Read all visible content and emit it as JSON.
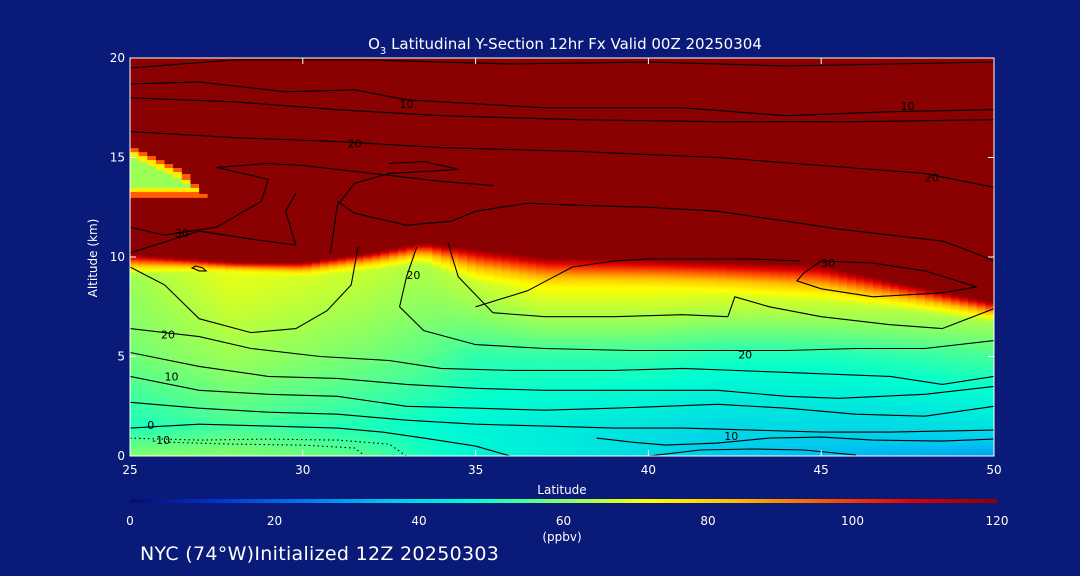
{
  "chart_data": {
    "type": "heatmap",
    "title_prefix": "O",
    "title_sub": "3",
    "title_rest": " Latitudinal Y-Section 12hr  Fx Valid 00Z 20250304",
    "xlabel": "Latitude",
    "ylabel": "Altitude (km)",
    "xlim": [
      25,
      50
    ],
    "ylim": [
      0,
      20
    ],
    "xticks": [
      "25",
      "30",
      "35",
      "40",
      "45",
      "50"
    ],
    "yticks": [
      "0",
      "5",
      "10",
      "15",
      "20"
    ],
    "colorbar": {
      "min": 0,
      "max": 120,
      "ticks": [
        "0",
        "20",
        "40",
        "60",
        "80",
        "100",
        "120"
      ],
      "unit": "(ppbv)",
      "colors": [
        "#0a0a70",
        "#0033cc",
        "#0077ee",
        "#00c8f0",
        "#00ffd0",
        "#88ff66",
        "#ffff00",
        "#ffbb00",
        "#ff5500",
        "#e00000",
        "#8b0000"
      ]
    },
    "field": [
      {
        "lat": 25,
        "bottom": 0,
        "v02": 60,
        "v1": 50,
        "mid": 58,
        "top": 62,
        "blend_lo": 9.0,
        "sat": 10.2,
        "strat_lo": 13.0,
        "strat_hi": 15.6
      },
      {
        "lat": 26.5,
        "bottom": 0,
        "v02": 60,
        "v1": 52,
        "mid": 60,
        "top": 66,
        "blend_lo": 9.2,
        "sat": 10.0,
        "strat_lo": 13.0,
        "strat_hi": 14.4
      },
      {
        "lat": 28,
        "bottom": 0,
        "v02": 60,
        "v1": 54,
        "mid": 62,
        "top": 70,
        "blend_lo": 9.2,
        "sat": 9.8
      },
      {
        "lat": 30,
        "bottom": 0,
        "v02": 58,
        "v1": 52,
        "mid": 60,
        "top": 68,
        "blend_lo": 9.0,
        "sat": 9.8
      },
      {
        "lat": 32,
        "bottom": 0,
        "v02": 55,
        "v1": 50,
        "mid": 58,
        "top": 66,
        "blend_lo": 9.3,
        "sat": 10.3
      },
      {
        "lat": 33.5,
        "bottom": 0,
        "v02": 50,
        "v1": 48,
        "mid": 56,
        "top": 64,
        "blend_lo": 9.6,
        "sat": 10.8
      },
      {
        "lat": 35,
        "bottom": 0,
        "v02": 46,
        "v1": 46,
        "mid": 52,
        "top": 66,
        "blend_lo": 8.6,
        "sat": 10.5
      },
      {
        "lat": 37,
        "bottom": 0,
        "v02": 44,
        "v1": 44,
        "mid": 52,
        "top": 70,
        "blend_lo": 8.2,
        "sat": 10.1
      },
      {
        "lat": 40,
        "bottom": 0,
        "v02": 40,
        "v1": 42,
        "mid": 52,
        "top": 70,
        "blend_lo": 8.2,
        "sat": 10.0
      },
      {
        "lat": 42,
        "bottom": 0,
        "v02": 36,
        "v1": 40,
        "mid": 50,
        "top": 68,
        "blend_lo": 8.0,
        "sat": 9.9
      },
      {
        "lat": 45,
        "bottom": 0,
        "v02": 34,
        "v1": 40,
        "mid": 50,
        "top": 66,
        "blend_lo": 7.6,
        "sat": 9.7
      },
      {
        "lat": 47.5,
        "bottom": 0,
        "v02": 32,
        "v1": 40,
        "mid": 52,
        "top": 64,
        "blend_lo": 7.2,
        "sat": 8.7
      },
      {
        "lat": 50,
        "bottom": 0,
        "v02": 30,
        "v1": 42,
        "mid": 54,
        "top": 62,
        "blend_lo": 6.6,
        "sat": 7.8
      }
    ],
    "contours": [
      {
        "label": "10",
        "level": 10,
        "dashed": false,
        "points": [
          [
            25,
            19.5
          ],
          [
            28,
            19.9
          ],
          [
            32,
            19.9
          ],
          [
            36,
            19.7
          ],
          [
            40,
            19.8
          ],
          [
            44,
            19.6
          ],
          [
            47,
            19.7
          ],
          [
            50,
            19.8
          ]
        ]
      },
      {
        "label": "10",
        "level": 10,
        "dashed": false,
        "points": [
          [
            25,
            18.7
          ],
          [
            27,
            18.8
          ],
          [
            29.5,
            18.3
          ],
          [
            31.5,
            18.4
          ],
          [
            33,
            17.9
          ],
          [
            37,
            17.5
          ],
          [
            41,
            17.5
          ],
          [
            44,
            17.1
          ],
          [
            47,
            17.3
          ],
          [
            50,
            17.4
          ]
        ],
        "label_at": [
          [
            33,
            17.7
          ],
          [
            47.5,
            17.6
          ]
        ]
      },
      {
        "label": "20",
        "level": 20,
        "dashed": false,
        "points": [
          [
            25,
            18.0
          ],
          [
            28,
            17.8
          ],
          [
            31,
            17.4
          ],
          [
            34,
            17.1
          ],
          [
            38,
            16.9
          ],
          [
            42,
            16.8
          ],
          [
            46,
            16.8
          ],
          [
            50,
            16.9
          ]
        ]
      },
      {
        "label": "20",
        "level": 20,
        "dashed": false,
        "points": [
          [
            25,
            16.3
          ],
          [
            28,
            16.0
          ],
          [
            31,
            15.8
          ],
          [
            34,
            15.5
          ],
          [
            38,
            15.3
          ],
          [
            42,
            15.0
          ],
          [
            45,
            14.6
          ],
          [
            48,
            14.2
          ],
          [
            50,
            13.5
          ]
        ],
        "label_at": [
          [
            31.5,
            15.7
          ],
          [
            48.2,
            14.0
          ]
        ]
      },
      {
        "label": "30",
        "level": 30,
        "dashed": false,
        "points": [
          [
            25,
            11.5
          ],
          [
            26,
            11.1
          ],
          [
            27.5,
            11.5
          ],
          [
            28.8,
            12.8
          ],
          [
            29,
            13.9
          ],
          [
            27.5,
            14.5
          ],
          [
            29,
            14.7
          ],
          [
            30,
            14.6
          ],
          [
            32,
            14.2
          ],
          [
            34,
            13.8
          ],
          [
            35.5,
            13.6
          ]
        ]
      },
      {
        "label": "30",
        "level": 30,
        "dashed": false,
        "points": [
          [
            25,
            10.2
          ],
          [
            27,
            11.3
          ],
          [
            28.5,
            10.9
          ],
          [
            29.8,
            10.6
          ],
          [
            29.5,
            12.3
          ],
          [
            29.8,
            13.2
          ]
        ],
        "label_at": [
          [
            26.5,
            11.2
          ]
        ]
      },
      {
        "label": "30",
        "level": 30,
        "dashed": false,
        "points": [
          [
            30.8,
            10.2
          ],
          [
            31,
            12.6
          ],
          [
            31.5,
            13.7
          ],
          [
            32.5,
            14.2
          ],
          [
            34.5,
            14.4
          ],
          [
            33.5,
            14.8
          ],
          [
            32.5,
            14.7
          ]
        ]
      },
      {
        "label": "30",
        "level": 30,
        "dashed": false,
        "points": [
          [
            31,
            12.8
          ],
          [
            31.5,
            12.2
          ],
          [
            33,
            11.6
          ],
          [
            34.3,
            11.8
          ],
          [
            35,
            12.3
          ],
          [
            36.5,
            12.7
          ],
          [
            38,
            12.6
          ],
          [
            40,
            12.5
          ],
          [
            42,
            12.3
          ],
          [
            44,
            11.8
          ],
          [
            45.5,
            11.4
          ],
          [
            47,
            11.1
          ],
          [
            48.5,
            10.8
          ],
          [
            49.3,
            10.3
          ],
          [
            50,
            9.8
          ]
        ]
      },
      {
        "label": "30",
        "level": 30,
        "dashed": false,
        "points": [
          [
            44.5,
            9.2
          ],
          [
            44.3,
            8.8
          ],
          [
            45,
            8.4
          ],
          [
            46.5,
            8.0
          ],
          [
            48.5,
            8.2
          ],
          [
            49.5,
            8.5
          ],
          [
            48,
            9.3
          ],
          [
            46.5,
            9.7
          ],
          [
            45,
            9.8
          ],
          [
            44.5,
            9.2
          ]
        ],
        "label_at": [
          [
            45.2,
            9.7
          ]
        ]
      },
      {
        "label": "",
        "level": 30,
        "dashed": false,
        "points": [
          [
            26.9,
            9.55
          ],
          [
            27.1,
            9.45
          ],
          [
            27.2,
            9.3
          ],
          [
            27.0,
            9.3
          ],
          [
            26.8,
            9.45
          ],
          [
            26.9,
            9.55
          ]
        ]
      },
      {
        "label": "20",
        "level": 20,
        "dashed": false,
        "points": [
          [
            25,
            9.5
          ],
          [
            26,
            8.6
          ],
          [
            27,
            6.9
          ],
          [
            28.5,
            6.2
          ],
          [
            29.8,
            6.4
          ],
          [
            30.7,
            7.3
          ],
          [
            31.4,
            8.6
          ],
          [
            31.6,
            10.5
          ]
        ]
      },
      {
        "label": "20",
        "level": 20,
        "dashed": false,
        "points": [
          [
            33.3,
            10.5
          ],
          [
            33,
            9.0
          ],
          [
            32.8,
            7.5
          ],
          [
            33.5,
            6.3
          ],
          [
            35,
            5.6
          ],
          [
            37,
            5.4
          ],
          [
            39.5,
            5.3
          ],
          [
            42,
            5.3
          ],
          [
            44,
            5.3
          ],
          [
            46,
            5.4
          ],
          [
            48,
            5.4
          ],
          [
            50,
            5.8
          ]
        ],
        "label_at": [
          [
            33.2,
            9.1
          ],
          [
            42.8,
            5.1
          ]
        ]
      },
      {
        "label": "",
        "level": 25,
        "dashed": false,
        "points": [
          [
            34.2,
            10.7
          ],
          [
            34.5,
            9.0
          ],
          [
            35.5,
            7.2
          ],
          [
            37,
            7.0
          ],
          [
            39,
            7.0
          ],
          [
            41,
            7.1
          ],
          [
            42.3,
            7.0
          ]
        ]
      },
      {
        "label": "",
        "level": 25,
        "dashed": false,
        "points": [
          [
            35,
            7.5
          ],
          [
            36.5,
            8.3
          ],
          [
            37.8,
            9.5
          ],
          [
            39,
            9.8
          ],
          [
            40,
            9.9
          ],
          [
            41.5,
            9.9
          ],
          [
            43,
            9.9
          ],
          [
            44.4,
            9.8
          ]
        ]
      },
      {
        "label": "",
        "level": 25,
        "dashed": false,
        "points": [
          [
            42.3,
            7.0
          ],
          [
            42.5,
            8.0
          ],
          [
            43.5,
            7.5
          ],
          [
            45,
            7.0
          ],
          [
            47,
            6.6
          ],
          [
            48.5,
            6.4
          ],
          [
            50,
            7.4
          ]
        ]
      },
      {
        "label": "20",
        "level": 20,
        "dashed": false,
        "points": [
          [
            25,
            6.4
          ],
          [
            27,
            6.0
          ],
          [
            28.5,
            5.4
          ],
          [
            30.5,
            5.0
          ],
          [
            32.5,
            4.8
          ],
          [
            34,
            4.4
          ],
          [
            36,
            4.3
          ],
          [
            39,
            4.3
          ],
          [
            41,
            4.4
          ],
          [
            44,
            4.2
          ],
          [
            47,
            4.0
          ],
          [
            48.5,
            3.6
          ],
          [
            50,
            4.0
          ]
        ],
        "label_at": [
          [
            26.1,
            6.1
          ]
        ]
      },
      {
        "label": "10",
        "level": 10,
        "dashed": false,
        "points": [
          [
            25,
            5.2
          ],
          [
            27,
            4.5
          ],
          [
            29,
            4.0
          ],
          [
            31,
            3.9
          ],
          [
            33,
            3.6
          ],
          [
            35,
            3.4
          ],
          [
            37,
            3.3
          ],
          [
            40,
            3.3
          ],
          [
            42,
            3.3
          ],
          [
            44,
            3.0
          ],
          [
            45.5,
            2.9
          ],
          [
            48,
            3.1
          ],
          [
            50,
            3.5
          ]
        ],
        "label_at": [
          [
            26.2,
            4.0
          ]
        ]
      },
      {
        "label": "",
        "level": 8,
        "dashed": false,
        "points": [
          [
            25,
            4.0
          ],
          [
            27,
            3.3
          ],
          [
            29,
            3.1
          ],
          [
            31,
            3.0
          ],
          [
            33,
            2.5
          ],
          [
            35,
            2.4
          ],
          [
            37,
            2.3
          ],
          [
            39,
            2.4
          ],
          [
            42,
            2.6
          ],
          [
            44,
            2.4
          ],
          [
            46,
            2.1
          ],
          [
            48,
            2.0
          ],
          [
            50,
            2.5
          ]
        ]
      },
      {
        "label": "",
        "level": 5,
        "dashed": false,
        "points": [
          [
            25,
            2.7
          ],
          [
            27,
            2.4
          ],
          [
            29,
            2.2
          ],
          [
            31,
            2.1
          ],
          [
            33,
            1.8
          ],
          [
            35,
            1.6
          ],
          [
            37,
            1.5
          ],
          [
            39,
            1.4
          ],
          [
            41,
            1.4
          ],
          [
            43,
            1.3
          ],
          [
            45,
            1.2
          ],
          [
            47,
            1.2
          ],
          [
            50,
            1.3
          ]
        ]
      },
      {
        "label": "0",
        "level": 0,
        "dashed": false,
        "points": [
          [
            25,
            1.4
          ],
          [
            27,
            1.6
          ],
          [
            29,
            1.5
          ],
          [
            31,
            1.4
          ],
          [
            32.3,
            1.2
          ],
          [
            33.5,
            0.9
          ],
          [
            35,
            0.5
          ],
          [
            36,
            0.0
          ]
        ],
        "label_at": [
          [
            25.6,
            1.55
          ]
        ]
      },
      {
        "label": "10",
        "level": 10,
        "dashed": false,
        "points": [
          [
            38.5,
            0.9
          ],
          [
            39.5,
            0.7
          ],
          [
            40.5,
            0.55
          ],
          [
            42,
            0.65
          ],
          [
            43.5,
            0.9
          ],
          [
            45,
            0.95
          ],
          [
            46.5,
            0.8
          ],
          [
            48.5,
            0.75
          ],
          [
            50,
            0.85
          ]
        ],
        "label_at": [
          [
            42.4,
            1.0
          ]
        ]
      },
      {
        "label": "",
        "level": 5,
        "dashed": false,
        "points": [
          [
            40,
            0.0
          ],
          [
            41.5,
            0.3
          ],
          [
            43,
            0.35
          ],
          [
            44.5,
            0.3
          ],
          [
            46,
            0.05
          ]
        ]
      },
      {
        "label": "-10",
        "level": -10,
        "dashed": true,
        "points": [
          [
            25,
            0.9
          ],
          [
            27,
            0.8
          ],
          [
            29,
            0.85
          ],
          [
            31,
            0.8
          ],
          [
            32.5,
            0.6
          ],
          [
            33,
            0.0
          ]
        ],
        "label_at": [
          [
            25.9,
            0.8
          ]
        ]
      },
      {
        "label": "",
        "level": -10,
        "dashed": true,
        "points": [
          [
            26,
            0.7
          ],
          [
            28,
            0.6
          ],
          [
            30,
            0.55
          ],
          [
            31.5,
            0.4
          ],
          [
            31.8,
            0.0
          ]
        ]
      }
    ]
  },
  "footer": {
    "text": "NYC (74°W)Initialized 12Z 20250303"
  }
}
